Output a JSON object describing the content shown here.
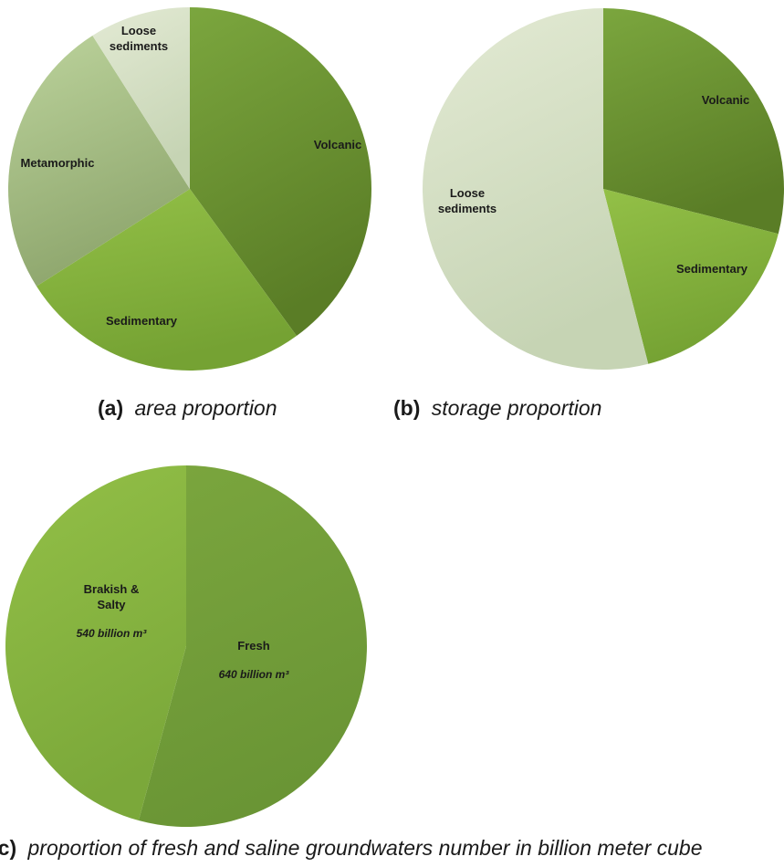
{
  "colors": {
    "volcanic": [
      "#7ba63e",
      "#5a7d26"
    ],
    "sedimentary": [
      "#93c047",
      "#75a233"
    ],
    "metamorphic": [
      "#bcd39c",
      "#8ea66d"
    ],
    "loose_sediments": [
      "#e3ead4",
      "#c6d4b4"
    ],
    "fresh": [
      "#7ba63e",
      "#6a9535"
    ],
    "brakish_salty": [
      "#93c047",
      "#7ba83a"
    ]
  },
  "captions": {
    "a_letter": "(a)",
    "a_text": "area proportion",
    "b_letter": "(b)",
    "b_text": "storage proportion",
    "c_letter": "(c)",
    "c_text": "proportion of fresh and saline groundwaters number in billion meter cube"
  },
  "chart_data": [
    {
      "type": "pie",
      "id": "a",
      "title": "area proportion",
      "slices": [
        {
          "label": "Volcanic",
          "value": 40,
          "color_key": "volcanic"
        },
        {
          "label": "Sedimentary",
          "value": 26,
          "color_key": "sedimentary"
        },
        {
          "label": "Metamorphic",
          "value": 25,
          "color_key": "metamorphic"
        },
        {
          "label": "Loose sediments",
          "label_lines": [
            "Loose",
            "sediments"
          ],
          "value": 9,
          "color_key": "loose_sediments"
        }
      ],
      "start_angle_deg": 0,
      "direction": "clockwise",
      "legend": "none"
    },
    {
      "type": "pie",
      "id": "b",
      "title": "storage proportion",
      "slices": [
        {
          "label": "Volcanic",
          "value": 29,
          "color_key": "volcanic"
        },
        {
          "label": "Sedimentary",
          "value": 17,
          "color_key": "sedimentary"
        },
        {
          "label": "Loose sediments",
          "label_lines": [
            "Loose",
            "sediments"
          ],
          "value": 54,
          "color_key": "loose_sediments"
        }
      ],
      "start_angle_deg": 0,
      "direction": "clockwise",
      "legend": "none"
    },
    {
      "type": "pie",
      "id": "c",
      "title": "proportion of fresh and saline groundwaters number in billion meter cube",
      "slices": [
        {
          "label": "Fresh",
          "label_lines": [
            "Fresh"
          ],
          "value": 640,
          "value_label": "640 billion m³",
          "color_key": "fresh"
        },
        {
          "label": "Brakish & Salty",
          "label_lines": [
            "Brakish &",
            "Salty"
          ],
          "value": 540,
          "value_label": "540 billion m³",
          "color_key": "brakish_salty"
        }
      ],
      "start_angle_deg": 0,
      "direction": "clockwise",
      "legend": "none"
    }
  ]
}
